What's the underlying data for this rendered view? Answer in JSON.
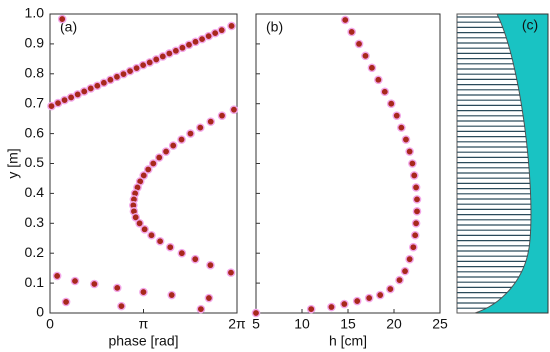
{
  "chart_data": [
    {
      "type": "scatter",
      "annotation": "(a)",
      "x_label": "phase [rad]",
      "y_label": "y [m]",
      "xlim": [
        0,
        6.28319
      ],
      "ylim": [
        0,
        1
      ],
      "xticks": [
        0,
        {
          "value": 3.14159,
          "label": "π"
        },
        {
          "value": 6.28319,
          "label": "2π"
        }
      ],
      "yticks": [
        0,
        0.1,
        0.2,
        0.3,
        0.4,
        0.5,
        0.6,
        0.7,
        0.8,
        0.9,
        {
          "value": 1,
          "label": "1.0"
        }
      ],
      "series": [
        {
          "color": "#a8281c",
          "x": [
            0.41,
            0.05,
            0.27,
            0.49,
            0.71,
            0.93,
            1.15,
            1.37,
            1.59,
            1.81,
            2.03,
            2.25,
            2.47,
            2.69,
            2.91,
            3.13,
            3.35,
            3.57,
            3.79,
            4.01,
            4.23,
            4.45,
            4.67,
            4.89,
            5.11,
            5.33,
            5.55,
            5.77,
            6.1,
            6.18,
            5.78,
            5.4,
            5.05,
            4.72,
            4.42,
            4.14,
            3.9,
            3.67,
            3.47,
            3.3,
            3.15,
            3.03,
            2.94,
            2.86,
            2.82,
            2.8,
            2.82,
            2.88,
            3.01,
            3.18,
            3.41,
            3.7,
            4.04,
            4.43,
            4.88,
            5.39,
            6.08,
            0.24,
            0.84,
            1.49,
            2.26,
            3.14,
            4.09,
            5.34,
            0.54,
            2.4,
            5.07
          ],
          "values": [
            0.983,
            0.692,
            0.702,
            0.712,
            0.721,
            0.731,
            0.741,
            0.751,
            0.76,
            0.77,
            0.78,
            0.79,
            0.799,
            0.809,
            0.819,
            0.829,
            0.838,
            0.848,
            0.858,
            0.868,
            0.877,
            0.887,
            0.897,
            0.907,
            0.916,
            0.926,
            0.936,
            0.946,
            0.96,
            0.68,
            0.66,
            0.64,
            0.62,
            0.6,
            0.58,
            0.56,
            0.54,
            0.52,
            0.5,
            0.48,
            0.46,
            0.44,
            0.42,
            0.4,
            0.38,
            0.36,
            0.34,
            0.32,
            0.3,
            0.28,
            0.26,
            0.24,
            0.22,
            0.2,
            0.18,
            0.16,
            0.135,
            0.124,
            0.107,
            0.097,
            0.084,
            0.07,
            0.06,
            0.05,
            0.037,
            0.023,
            0.013
          ]
        }
      ]
    },
    {
      "type": "scatter",
      "annotation": "(b)",
      "x_label": "h [cm]",
      "xlim": [
        5,
        25
      ],
      "ylim": [
        0,
        1
      ],
      "xticks": [
        5,
        10,
        15,
        20,
        25
      ],
      "yticks": [
        0,
        0.1,
        0.2,
        0.3,
        0.4,
        0.5,
        0.6,
        0.7,
        0.8,
        0.9,
        1
      ],
      "series": [
        {
          "color": "#a8281c",
          "x": [
            14.7,
            15.4,
            16.2,
            16.9,
            17.6,
            18.3,
            19.0,
            19.7,
            20.3,
            20.8,
            21.3,
            21.7,
            22.0,
            22.2,
            22.4,
            22.5,
            22.5,
            22.4,
            22.3,
            22.1,
            21.7,
            21.2,
            20.6,
            19.6,
            18.5,
            17.3,
            16.0,
            14.6,
            13.2,
            11.0,
            5.0
          ],
          "values": [
            0.98,
            0.94,
            0.9,
            0.86,
            0.82,
            0.78,
            0.74,
            0.7,
            0.66,
            0.62,
            0.58,
            0.54,
            0.5,
            0.46,
            0.42,
            0.38,
            0.34,
            0.3,
            0.26,
            0.22,
            0.18,
            0.14,
            0.11,
            0.08,
            0.06,
            0.05,
            0.04,
            0.03,
            0.02,
            0.013,
            0
          ]
        }
      ]
    }
  ],
  "panel_c": {
    "annotation": "(c)"
  }
}
